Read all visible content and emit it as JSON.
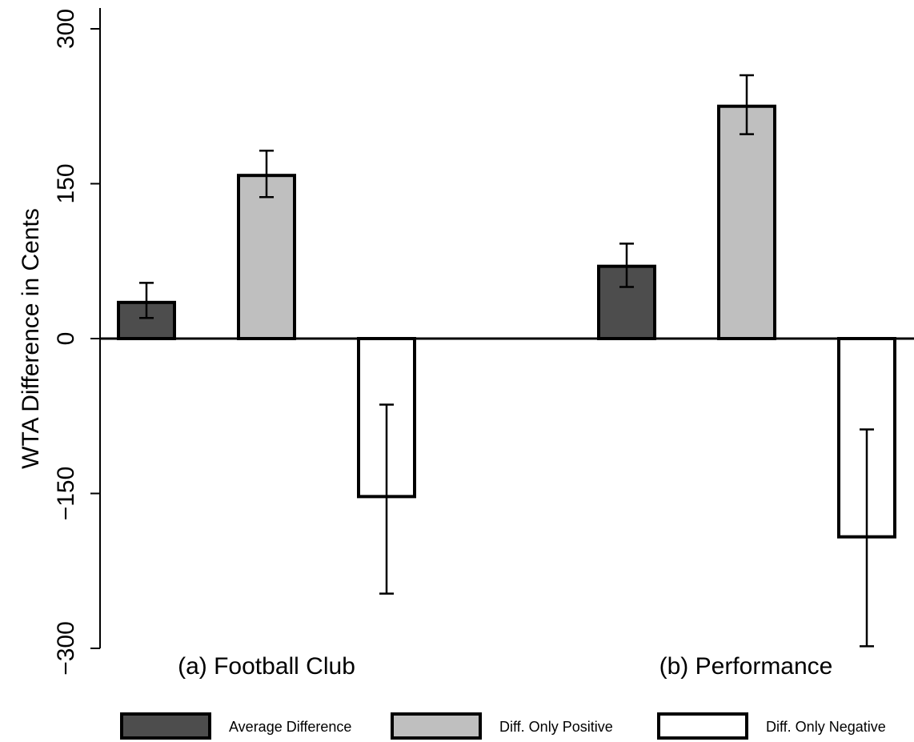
{
  "chart_data": {
    "type": "bar",
    "ylabel": "WTA Difference in Cents",
    "ylim": [
      -300,
      300
    ],
    "yticks": [
      -300,
      -150,
      0,
      150,
      300
    ],
    "ytick_labels": [
      "−300",
      "−150",
      "0",
      "150",
      "300"
    ],
    "groups": [
      "(a) Football Club",
      "(b) Performance"
    ],
    "series": [
      {
        "name": "Average Difference",
        "color": "#4d4d4d",
        "values": [
          35,
          70
        ],
        "ci_low": [
          20,
          50
        ],
        "ci_high": [
          54,
          92
        ]
      },
      {
        "name": "Diff. Only Positive",
        "color": "#bfbfbf",
        "values": [
          158,
          225
        ],
        "ci_low": [
          137,
          198
        ],
        "ci_high": [
          182,
          255
        ]
      },
      {
        "name": "Diff. Only Negative",
        "color": "#ffffff",
        "values": [
          -153,
          -192
        ],
        "ci_low": [
          -247,
          -298
        ],
        "ci_high": [
          -64,
          -88
        ]
      }
    ],
    "legend_position": "bottom",
    "grid": false
  }
}
